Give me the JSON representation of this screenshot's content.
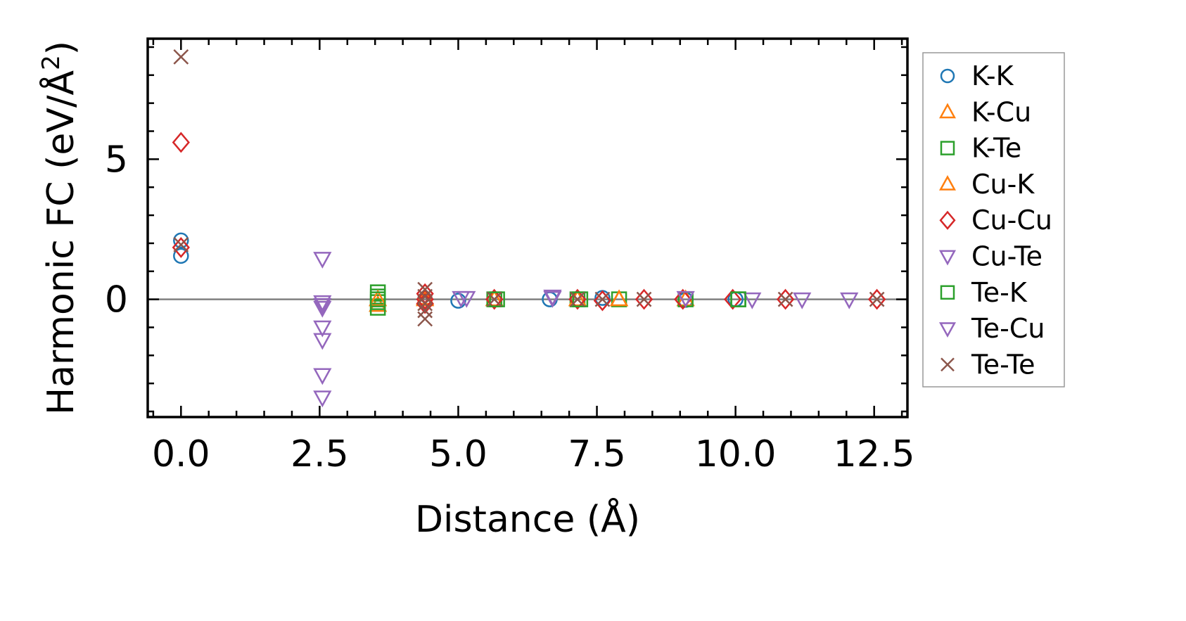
{
  "chart_data": {
    "type": "scatter",
    "xlabel": "Distance (Å)",
    "ylabel_main": "Harmonic FC (eV/Å",
    "ylabel_sup": "2",
    "ylabel_close": ")",
    "xlim": [
      -0.6,
      13.1
    ],
    "ylim": [
      -4.2,
      9.3
    ],
    "x_ticks": [
      0.0,
      2.5,
      5.0,
      7.5,
      10.0,
      12.5
    ],
    "x_tick_labels": [
      "0.0",
      "2.5",
      "5.0",
      "7.5",
      "10.0",
      "12.5"
    ],
    "y_ticks": [
      0,
      5
    ],
    "y_tick_labels": [
      "0",
      "5"
    ],
    "x_minor_step": 0.5,
    "y_minor_step": 1,
    "zero_line": true,
    "grid": false,
    "legend_position": "outside-right",
    "series": [
      {
        "name": "K-K",
        "marker": "circle",
        "color": "#1f77b4",
        "points": [
          [
            0,
            2.1
          ],
          [
            0,
            1.55
          ],
          [
            5.0,
            -0.05
          ],
          [
            6.65,
            0.0
          ],
          [
            7.6,
            0.05
          ],
          [
            9.1,
            -0.02
          ],
          [
            10.0,
            0.0
          ]
        ]
      },
      {
        "name": "K-Cu",
        "marker": "triangle-up",
        "color": "#ff7f0e",
        "points": [
          [
            3.55,
            -0.2
          ],
          [
            4.4,
            0.0
          ],
          [
            5.65,
            0.0
          ],
          [
            7.9,
            0.0
          ],
          [
            9.1,
            0.0
          ]
        ]
      },
      {
        "name": "K-Te",
        "marker": "square",
        "color": "#2ca02c",
        "points": [
          [
            3.55,
            0.25
          ],
          [
            3.55,
            0.1
          ],
          [
            3.55,
            -0.1
          ],
          [
            3.55,
            -0.3
          ],
          [
            5.65,
            0.0
          ],
          [
            7.15,
            0.0
          ],
          [
            7.9,
            0.0
          ],
          [
            9.1,
            0.0
          ],
          [
            10.05,
            0.0
          ]
        ]
      },
      {
        "name": "Cu-K",
        "marker": "triangle-up",
        "color": "#ff7f0e",
        "points": [
          [
            3.55,
            0.0
          ],
          [
            4.4,
            0.05
          ],
          [
            7.15,
            0.0
          ],
          [
            7.9,
            0.0
          ]
        ]
      },
      {
        "name": "Cu-Cu",
        "marker": "diamond",
        "color": "#d62728",
        "points": [
          [
            0,
            5.6
          ],
          [
            0,
            1.85
          ],
          [
            4.4,
            0.2
          ],
          [
            4.4,
            0.0
          ],
          [
            4.4,
            -0.15
          ],
          [
            5.65,
            0.0
          ],
          [
            7.15,
            0.0
          ],
          [
            7.6,
            -0.05
          ],
          [
            8.35,
            0.0
          ],
          [
            9.05,
            0.0
          ],
          [
            9.95,
            0.0
          ],
          [
            10.9,
            0.0
          ],
          [
            12.55,
            0.0
          ]
        ]
      },
      {
        "name": "Cu-Te",
        "marker": "triangle-down",
        "color": "#9467bd",
        "points": [
          [
            2.55,
            1.45
          ],
          [
            2.55,
            -0.1
          ],
          [
            2.55,
            -0.3
          ],
          [
            2.55,
            -1.0
          ],
          [
            2.55,
            -1.45
          ],
          [
            2.55,
            -2.7
          ],
          [
            2.55,
            -3.5
          ],
          [
            5.05,
            0.05
          ],
          [
            6.7,
            0.1
          ],
          [
            9.1,
            0.05
          ],
          [
            10.3,
            0.0
          ]
        ]
      },
      {
        "name": "Te-K",
        "marker": "square",
        "color": "#2ca02c",
        "points": [
          [
            3.55,
            0.0
          ],
          [
            5.7,
            0.0
          ],
          [
            7.2,
            0.0
          ],
          [
            10.05,
            0.0
          ]
        ]
      },
      {
        "name": "Te-Cu",
        "marker": "triangle-down",
        "color": "#9467bd",
        "points": [
          [
            2.55,
            -0.2
          ],
          [
            5.15,
            0.05
          ],
          [
            6.7,
            0.05
          ],
          [
            11.2,
            0.0
          ],
          [
            12.05,
            0.0
          ]
        ]
      },
      {
        "name": "Te-Te",
        "marker": "x",
        "color": "#8c564b",
        "points": [
          [
            0,
            8.65
          ],
          [
            0,
            1.95
          ],
          [
            4.4,
            0.35
          ],
          [
            4.4,
            0.1
          ],
          [
            4.4,
            -0.15
          ],
          [
            4.4,
            -0.4
          ],
          [
            4.4,
            -0.7
          ],
          [
            5.65,
            0.0
          ],
          [
            7.15,
            0.0
          ],
          [
            7.6,
            0.0
          ],
          [
            8.35,
            0.0
          ],
          [
            10.9,
            0.0
          ],
          [
            12.55,
            0.0
          ]
        ]
      }
    ]
  }
}
